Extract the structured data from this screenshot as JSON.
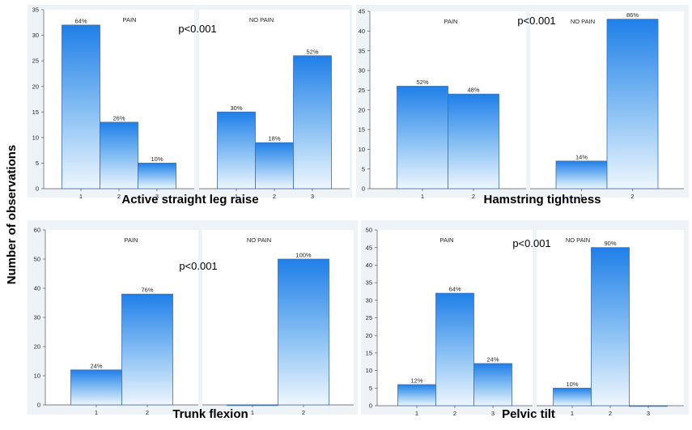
{
  "ylabel": "Number of observations",
  "chart_data": [
    {
      "type": "bar",
      "title": "Active straight leg raise",
      "p_value": "p<0.001",
      "ylim": [
        0,
        35
      ],
      "yticks": [
        0,
        5,
        10,
        15,
        20,
        25,
        30,
        35
      ],
      "subplots": [
        {
          "label": "PAIN",
          "categories": [
            "1",
            "2",
            "3"
          ],
          "values": [
            32,
            13,
            5
          ],
          "data_labels": [
            "64%",
            "26%",
            "10%"
          ]
        },
        {
          "label": "NO PAIN",
          "categories": [
            "1",
            "2",
            "3"
          ],
          "values": [
            15,
            9,
            26
          ],
          "data_labels": [
            "30%",
            "18%",
            "52%"
          ]
        }
      ]
    },
    {
      "type": "bar",
      "title": "Hamstring tightness",
      "p_value": "p<0.001",
      "ylim": [
        0,
        45
      ],
      "yticks": [
        0,
        5,
        10,
        15,
        20,
        25,
        30,
        35,
        40,
        45
      ],
      "subplots": [
        {
          "label": "PAIN",
          "categories": [
            "1",
            "2"
          ],
          "values": [
            26,
            24
          ],
          "data_labels": [
            "52%",
            "48%"
          ]
        },
        {
          "label": "NO PAIN",
          "categories": [
            "1",
            "2"
          ],
          "values": [
            7,
            43
          ],
          "data_labels": [
            "14%",
            "86%"
          ]
        }
      ]
    },
    {
      "type": "bar",
      "title": "Trunk flexion",
      "p_value": "p<0.001",
      "ylim": [
        0,
        60
      ],
      "yticks": [
        0,
        10,
        20,
        30,
        40,
        50,
        60
      ],
      "subplots": [
        {
          "label": "PAIN",
          "categories": [
            "1",
            "2"
          ],
          "values": [
            12,
            38
          ],
          "data_labels": [
            "24%",
            "76%"
          ]
        },
        {
          "label": "NO PAIN",
          "categories": [
            "1",
            "2"
          ],
          "values": [
            0,
            50
          ],
          "data_labels": [
            "",
            "100%"
          ]
        }
      ]
    },
    {
      "type": "bar",
      "title": "Pelvic tilt",
      "p_value": "p<0.001",
      "ylim": [
        0,
        50
      ],
      "yticks": [
        0,
        5,
        10,
        15,
        20,
        25,
        30,
        35,
        40,
        45,
        50
      ],
      "subplots": [
        {
          "label": "PAIN",
          "categories": [
            "1",
            "2",
            "3"
          ],
          "values": [
            6,
            32,
            12
          ],
          "data_labels": [
            "12%",
            "64%",
            "24%"
          ]
        },
        {
          "label": "NO PAIN",
          "categories": [
            "1",
            "2",
            "3"
          ],
          "values": [
            5,
            45,
            0
          ],
          "data_labels": [
            "10%",
            "90%",
            ""
          ]
        }
      ]
    }
  ]
}
